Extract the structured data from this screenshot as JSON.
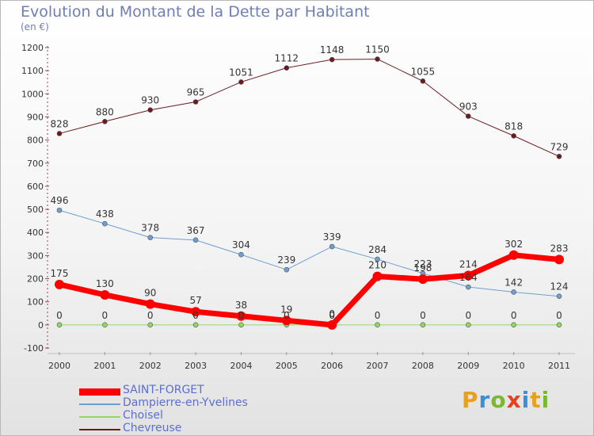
{
  "header": {
    "title": "Evolution du Montant de la Dette par Habitant",
    "unit": "(en €)"
  },
  "logo": {
    "text": "Proxiti",
    "colors": [
      "#e8a020",
      "#3a8fd8",
      "#7ab830",
      "#e84020",
      "#3a8fd8",
      "#e8a020",
      "#7ab830"
    ]
  },
  "chart_data": {
    "type": "line",
    "x": [
      "2000",
      "2001",
      "2002",
      "2003",
      "2004",
      "2005",
      "2006",
      "2007",
      "2008",
      "2009",
      "2010",
      "2011"
    ],
    "ylim": [
      -100,
      1200
    ],
    "yticks": [
      -100,
      0,
      100,
      200,
      300,
      400,
      500,
      600,
      700,
      800,
      900,
      1000,
      1100,
      1200
    ],
    "grid": false,
    "legend_position": "bottom-left",
    "series": [
      {
        "name": "Chevreuse",
        "color": "#6b1a1f",
        "width": 1,
        "values": [
          828,
          880,
          930,
          965,
          1051,
          1112,
          1148,
          1150,
          1055,
          903,
          818,
          729
        ]
      },
      {
        "name": "Dampierre-en-Yvelines",
        "color": "#6f9fd0",
        "width": 1,
        "values": [
          496,
          438,
          378,
          367,
          304,
          239,
          339,
          284,
          223,
          164,
          142,
          124
        ]
      },
      {
        "name": "Choisel",
        "color": "#90d860",
        "width": 1,
        "values": [
          0,
          0,
          0,
          0,
          0,
          0,
          0,
          0,
          0,
          0,
          0,
          0
        ]
      },
      {
        "name": "SAINT-FORGET",
        "color": "#ff0000",
        "width": 7,
        "values": [
          175,
          130,
          90,
          57,
          38,
          19,
          0,
          210,
          198,
          214,
          302,
          283
        ]
      }
    ],
    "legend_order": [
      "SAINT-FORGET",
      "Dampierre-en-Yvelines",
      "Choisel",
      "Chevreuse"
    ]
  }
}
